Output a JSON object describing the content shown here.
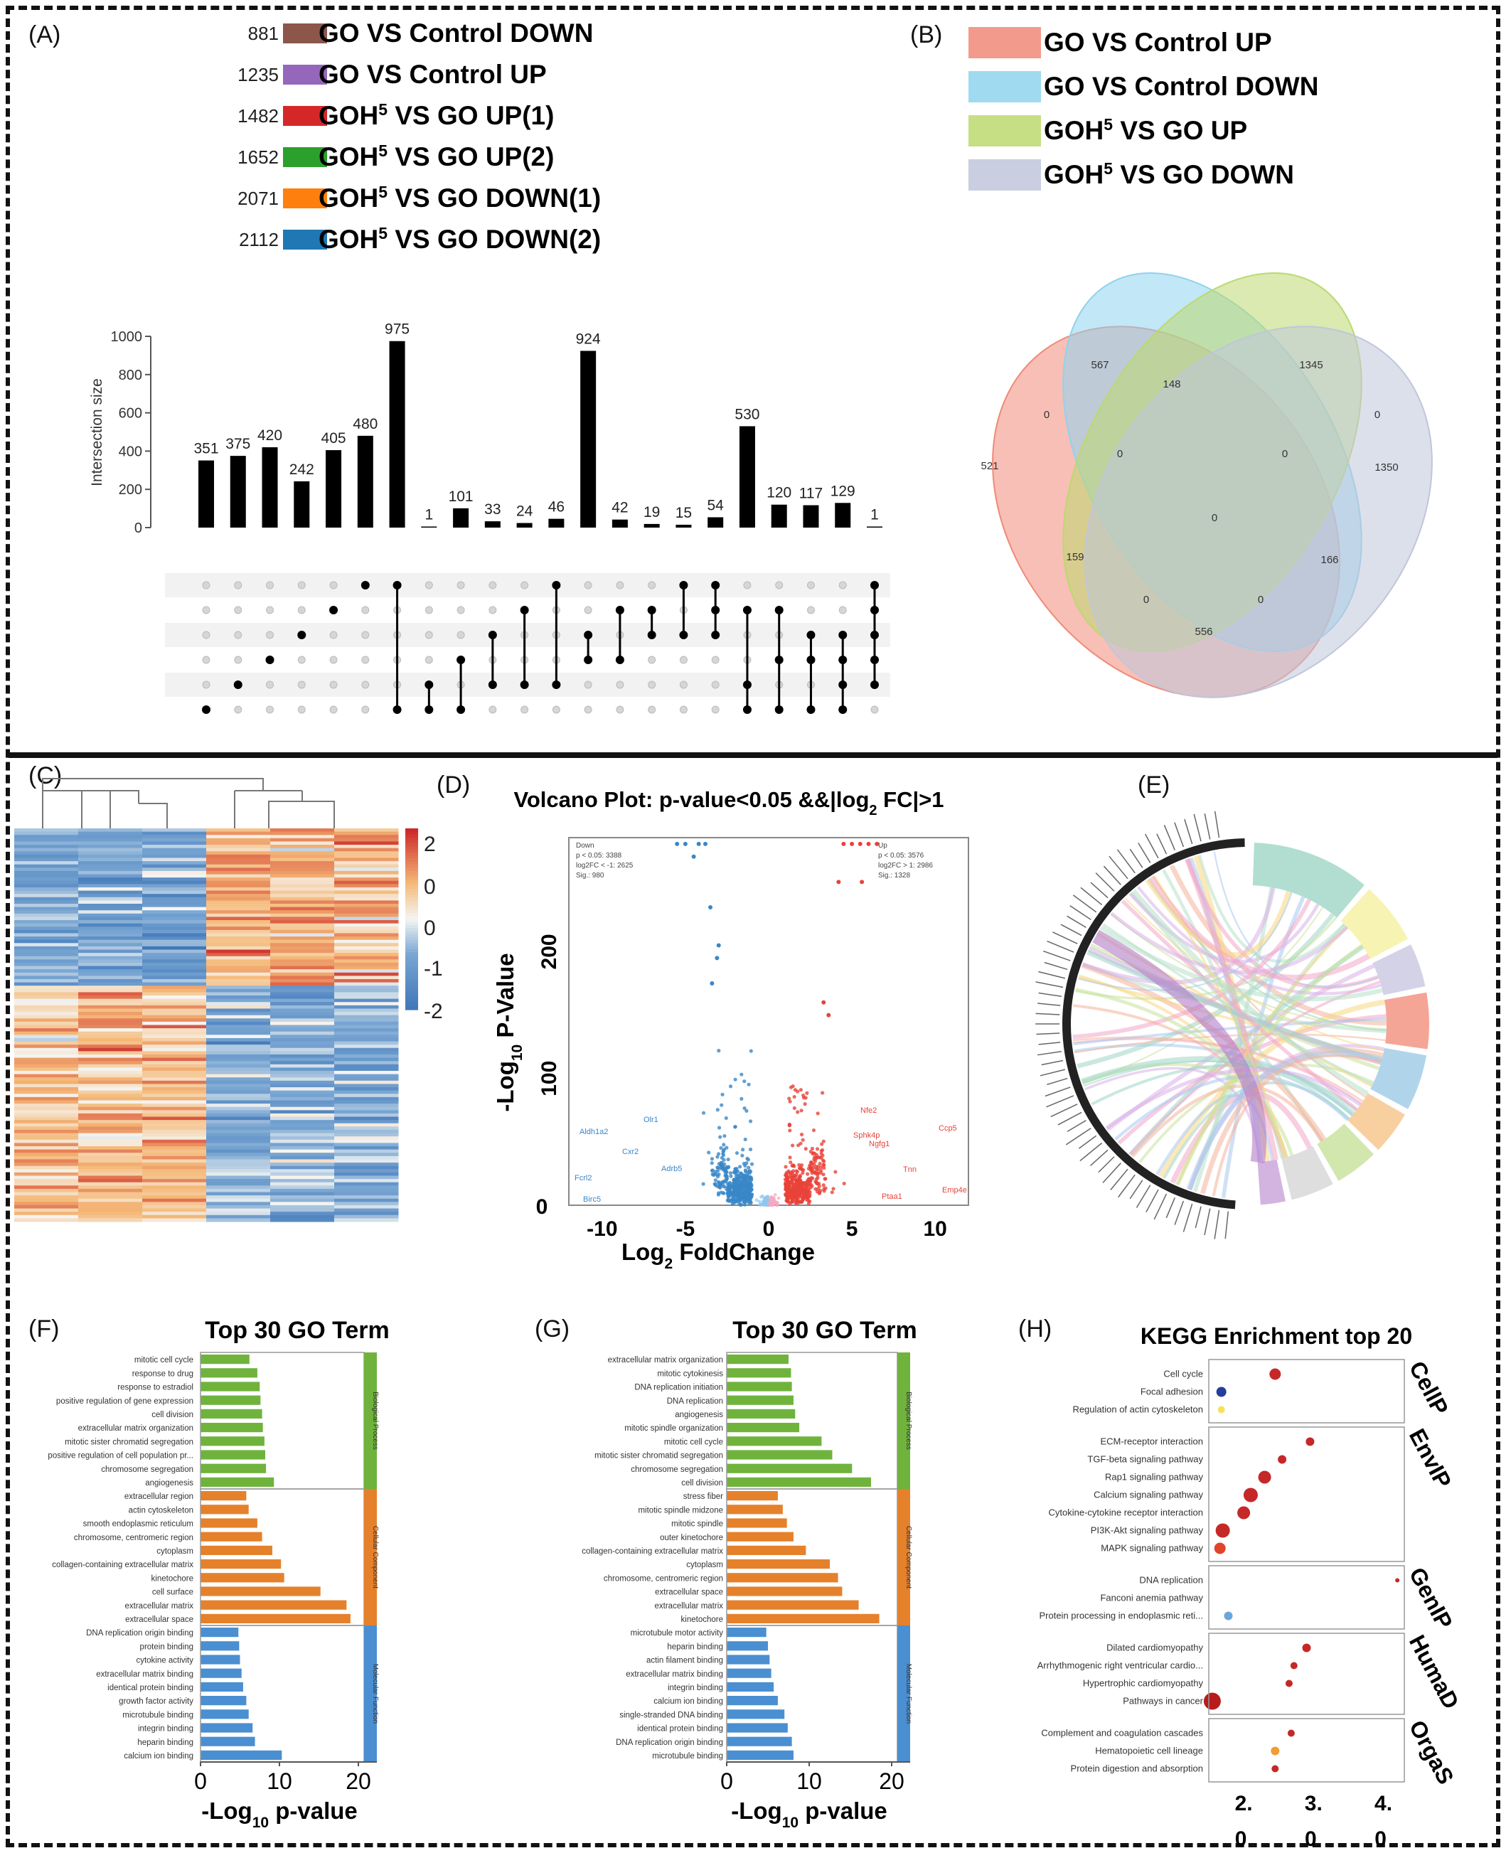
{
  "panel_labels": {
    "a": "(A)",
    "b": "(B)",
    "c": "(C)",
    "d": "(D)",
    "e": "(E)",
    "f": "(F)",
    "g": "(G)",
    "h": "(H)"
  },
  "colors": {
    "brown": "#8c564b",
    "purple": "#9467bd",
    "red": "#d62728",
    "green": "#2ca02c",
    "orange": "#ff7f0e",
    "blue": "#1f77b4",
    "bp": "#6fb33c",
    "cc": "#e5812b",
    "mf": "#4a8fd1"
  },
  "chart_data": [
    {
      "id": "upset",
      "type": "bar",
      "ylabel": "Intersection size",
      "ylim": [
        0,
        1000
      ],
      "yticks": [
        0,
        200,
        400,
        600,
        800,
        1000
      ],
      "values": [
        351,
        375,
        420,
        242,
        405,
        480,
        975,
        1,
        101,
        33,
        24,
        46,
        924,
        42,
        19,
        15,
        54,
        530,
        120,
        117,
        129,
        1
      ],
      "sets": [
        {
          "label": "GO VS Control DOWN",
          "size": "881",
          "color": "#8c564b"
        },
        {
          "label": "GO VS Control UP",
          "size": "1235",
          "color": "#9467bd"
        },
        {
          "label": "GOH5 VS GO UP(1)",
          "size": "1482",
          "color": "#d62728"
        },
        {
          "label": "GOH5 VS GO UP(2)",
          "size": "1652",
          "color": "#2ca02c"
        },
        {
          "label": "GOH5 VS GO DOWN(1)",
          "size": "2071",
          "color": "#ff7f0e"
        },
        {
          "label": "GOH5 VS GO DOWN(2)",
          "size": "2112",
          "color": "#1f77b4"
        }
      ],
      "set_label_parts": [
        [
          "GO VS Control DOWN",
          ""
        ],
        [
          "GO VS Control UP",
          ""
        ],
        [
          "GOH",
          "5",
          " VS GO UP(1)"
        ],
        [
          "GOH",
          "5",
          " VS GO UP(2)"
        ],
        [
          "GOH",
          "5",
          " VS GO DOWN(1)"
        ],
        [
          "GOH",
          "5",
          " VS GO DOWN(2)"
        ]
      ],
      "matrix_rows": 6,
      "membership": [
        [
          0
        ],
        [
          1
        ],
        [
          2
        ],
        [
          3
        ],
        [
          4
        ],
        [
          5
        ],
        [
          5,
          0
        ],
        [
          0,
          1
        ],
        [
          0,
          2
        ],
        [
          1,
          3
        ],
        [
          1,
          4
        ],
        [
          1,
          5
        ],
        [
          2,
          3
        ],
        [
          2,
          4
        ],
        [
          3,
          4
        ],
        [
          3,
          5
        ],
        [
          3,
          4,
          5
        ],
        [
          0,
          1,
          4
        ],
        [
          0,
          2,
          4
        ],
        [
          0,
          2,
          3
        ],
        [
          0,
          1,
          2,
          3
        ],
        [
          1,
          2,
          3,
          4,
          5
        ]
      ]
    },
    {
      "id": "venn",
      "type": "venn",
      "legend": [
        {
          "label": "GO VS Control UP",
          "color": "#f08a78"
        },
        {
          "label": "GO VS Control DOWN",
          "color": "#8fd3ee"
        },
        {
          "label": "GOH5 VS GO UP",
          "color": "#bcd96f"
        },
        {
          "label": "GOH5 VS GO DOWN",
          "color": "#c0c6da"
        }
      ],
      "region_values": [
        "567",
        "148",
        "1345",
        "0",
        "0",
        "0",
        "0",
        "521",
        "0",
        "1350",
        "159",
        "166",
        "0",
        "0",
        "556"
      ]
    },
    {
      "id": "heatmap",
      "type": "heatmap",
      "colorbar_ticks": [
        "2",
        "0",
        "0",
        "-1",
        "-2"
      ],
      "columns": 6
    },
    {
      "id": "volcano",
      "type": "scatter",
      "title": "Volcano Plot: p-value<0.05 &&|log2 FC|>1",
      "xlabel": "Log2 FoldChange",
      "ylabel": "-Log10 P-Value",
      "xticks": [
        "-10",
        "-5",
        "0",
        "5",
        "10"
      ],
      "yticks": [
        "0",
        "100",
        "200"
      ],
      "xlim": [
        -12,
        12
      ],
      "ylim": [
        0,
        290
      ],
      "down_box": [
        "Down",
        "p < 0.05: 3388",
        "log2FC < -1: 2625",
        "Sig.: 980"
      ],
      "up_box": [
        "Up",
        "p < 0.05: 3576",
        "log2FC > 1: 2986",
        "Sig.: 1328"
      ],
      "gene_labels": [
        "Aldh1a2",
        "Olr1",
        "Cxr2",
        "Fcrl2",
        "Adrb5",
        "Birc5",
        "Nfe2",
        "Sphk4p",
        "Ngfg1",
        "Ccp5",
        "Tnn",
        "Emp4e",
        "Ptaa1"
      ]
    },
    {
      "id": "chord",
      "type": "chord"
    },
    {
      "id": "go_f",
      "type": "bar",
      "title": "Top 30 GO Term",
      "xlabel": "-Log10 p-value",
      "xticks": [
        "0",
        "10",
        "20"
      ],
      "xlim": [
        0,
        20
      ],
      "groups": [
        {
          "name": "Biological Process",
          "color": "#6fb33c",
          "terms": [
            "mitotic cell cycle",
            "response to drug",
            "response to estradiol",
            "positive regulation of gene expression",
            "cell division",
            "extracellular matrix organization",
            "mitotic sister chromatid segregation",
            "positive regulation of cell population pr...",
            "chromosome segregation",
            "angiogenesis"
          ],
          "values": [
            6.2,
            7.2,
            7.5,
            7.6,
            7.8,
            7.9,
            8.1,
            8.2,
            8.3,
            9.3
          ]
        },
        {
          "name": "Cellular Component",
          "color": "#e5812b",
          "terms": [
            "extracellular region",
            "actin cytoskeleton",
            "smooth endoplasmic reticulum",
            "chromosome, centromeric region",
            "cytoplasm",
            "collagen-containing extracellular matrix",
            "kinetochore",
            "cell surface",
            "extracellular matrix",
            "extracellular space"
          ],
          "values": [
            5.8,
            6.1,
            7.2,
            7.8,
            9.1,
            10.2,
            10.6,
            15.2,
            18.5,
            19.0
          ]
        },
        {
          "name": "Molecular Function",
          "color": "#4a8fd1",
          "terms": [
            "DNA replication origin binding",
            "protein binding",
            "cytokine activity",
            "extracellular matrix binding",
            "identical protein binding",
            "growth factor activity",
            "microtubule binding",
            "integrin binding",
            "heparin binding",
            "calcium ion binding"
          ],
          "values": [
            4.8,
            4.9,
            5.0,
            5.2,
            5.4,
            5.8,
            6.1,
            6.6,
            6.9,
            10.3
          ]
        }
      ]
    },
    {
      "id": "go_g",
      "type": "bar",
      "title": "Top 30 GO Term",
      "xlabel": "-Log10 p-value",
      "xticks": [
        "0",
        "10",
        "20"
      ],
      "xlim": [
        0,
        20
      ],
      "groups": [
        {
          "name": "Biological Process",
          "color": "#6fb33c",
          "terms": [
            "extracellular matrix organization",
            "mitotic cytokinesis",
            "DNA replication initiation",
            "DNA replication",
            "angiogenesis",
            "mitotic spindle organization",
            "mitotic cell cycle",
            "mitotic sister chromatid segregation",
            "chromosome segregation",
            "cell division"
          ],
          "values": [
            7.5,
            7.8,
            7.9,
            8.1,
            8.3,
            8.8,
            11.5,
            12.8,
            15.2,
            17.5
          ]
        },
        {
          "name": "Cellular Component",
          "color": "#e5812b",
          "terms": [
            "stress fiber",
            "mitotic spindle midzone",
            "mitotic spindle",
            "outer kinetochore",
            "collagen-containing extracellular matrix",
            "cytoplasm",
            "chromosome, centromeric region",
            "extracellular space",
            "extracellular matrix",
            "kinetochore"
          ],
          "values": [
            6.2,
            6.8,
            7.3,
            8.1,
            9.6,
            12.5,
            13.5,
            14.0,
            16.0,
            18.5
          ]
        },
        {
          "name": "Molecular Function",
          "color": "#4a8fd1",
          "terms": [
            "microtubule motor activity",
            "heparin binding",
            "actin filament binding",
            "extracellular matrix binding",
            "integrin binding",
            "calcium ion binding",
            "single-stranded DNA binding",
            "identical protein binding",
            "DNA replication origin binding",
            "microtubule binding"
          ],
          "values": [
            4.8,
            5.0,
            5.2,
            5.4,
            5.7,
            6.2,
            7.0,
            7.4,
            7.9,
            8.1
          ]
        }
      ]
    },
    {
      "id": "kegg",
      "type": "scatter",
      "title": "KEGG Enrichment top 20",
      "xticks": [
        "2.",
        "3.",
        "4."
      ],
      "xticks2": [
        "0",
        "0",
        "0"
      ],
      "xlim": [
        1.5,
        4.3
      ],
      "groups": [
        {
          "name": "CellP",
          "terms": [
            "Cell cycle",
            "Focal adhesion",
            "Regulation of actin cytoskeleton"
          ],
          "x": [
            2.45,
            1.68,
            1.68
          ],
          "colors": [
            "#c62828",
            "#243e9a",
            "#f5e25a"
          ],
          "r": [
            8,
            7,
            5
          ]
        },
        {
          "name": "EnvIP",
          "terms": [
            "ECM-receptor interaction",
            "TGF-beta signaling pathway",
            "Rap1 signaling pathway",
            "Calcium signaling pathway",
            "Cytokine-cytokine receptor interaction",
            "PI3K-Akt signaling pathway",
            "MAPK signaling pathway"
          ],
          "x": [
            2.95,
            2.55,
            2.3,
            2.1,
            2.0,
            1.7,
            1.66
          ],
          "colors": [
            "#c62828",
            "#c62828",
            "#c62828",
            "#c62828",
            "#c62828",
            "#c62828",
            "#e0452a"
          ],
          "r": [
            6,
            6,
            9,
            10,
            9,
            10,
            8
          ]
        },
        {
          "name": "GenIP",
          "terms": [
            "DNA replication",
            "Fanconi anemia pathway",
            "Protein processing in endoplasmic reti..."
          ],
          "x": [
            4.2,
            1.6,
            1.78
          ],
          "colors": [
            "#c62828",
            "#c62828",
            "#6aa7d8"
          ],
          "r": [
            3,
            0,
            6
          ]
        },
        {
          "name": "HumaD",
          "terms": [
            "Dilated cardiomyopathy",
            "Arrhythmogenic right ventricular cardio...",
            "Hypertrophic cardiomyopathy",
            "Pathways in cancer"
          ],
          "x": [
            2.9,
            2.72,
            2.65,
            1.55
          ],
          "colors": [
            "#c62828",
            "#c62828",
            "#c62828",
            "#b71c1c"
          ],
          "r": [
            6,
            5,
            5,
            12
          ]
        },
        {
          "name": "OrgaS",
          "terms": [
            "Complement and coagulation cascades",
            "Hematopoietic cell lineage",
            "Protein digestion and absorption"
          ],
          "x": [
            2.68,
            2.45,
            2.45
          ],
          "colors": [
            "#c62828",
            "#f39c34",
            "#c62828"
          ],
          "r": [
            5,
            6,
            5
          ]
        }
      ]
    }
  ]
}
